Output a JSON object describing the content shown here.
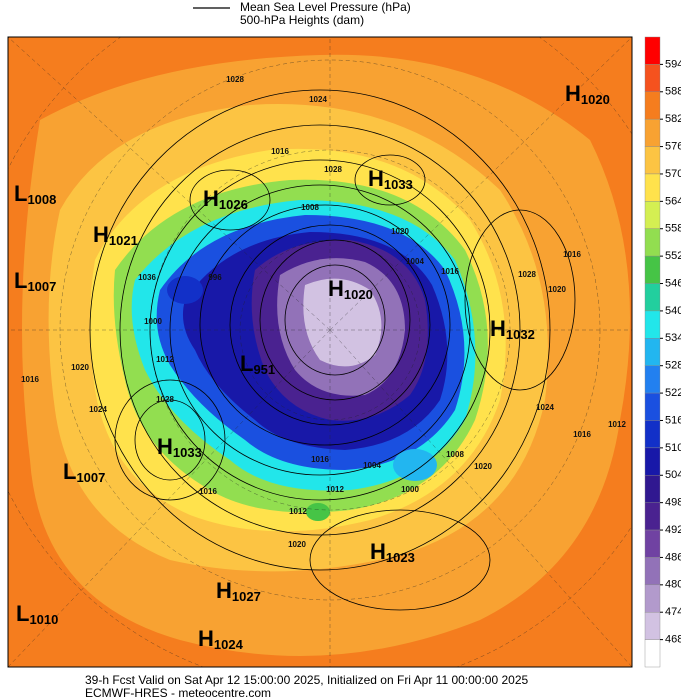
{
  "legend": {
    "items": [
      "Mean Sea Level Pressure (hPa)",
      "500-hPa Heights (dam)"
    ]
  },
  "colorbar": {
    "ticks": [
      594,
      588,
      582,
      576,
      570,
      564,
      558,
      552,
      546,
      540,
      534,
      528,
      522,
      516,
      510,
      504,
      498,
      492,
      486,
      480,
      474,
      468
    ],
    "colors": [
      "#ff0000",
      "#f5521e",
      "#f57d1e",
      "#f8a232",
      "#fcc443",
      "#ffe24c",
      "#d4ef52",
      "#92de50",
      "#46c446",
      "#22cf9e",
      "#22e6ea",
      "#22b6f0",
      "#2280f0",
      "#1a50e0",
      "#1230c8",
      "#1818a8",
      "#301890",
      "#4a2290",
      "#7042a2",
      "#9272b8",
      "#b29acc",
      "#d2c2e2",
      "#ffffff"
    ]
  },
  "centers": [
    {
      "kind": "H",
      "value": 1020
    },
    {
      "kind": "L",
      "value": 1008
    },
    {
      "kind": "H",
      "value": 1026
    },
    {
      "kind": "H",
      "value": 1033
    },
    {
      "kind": "H",
      "value": 1021
    },
    {
      "kind": "L",
      "value": 1007
    },
    {
      "kind": "H",
      "value": 1020
    },
    {
      "kind": "H",
      "value": 1032
    },
    {
      "kind": "L",
      "value": 951
    },
    {
      "kind": "H",
      "value": 1033
    },
    {
      "kind": "L",
      "value": 1007
    },
    {
      "kind": "H",
      "value": 1023
    },
    {
      "kind": "H",
      "value": 1027
    },
    {
      "kind": "L",
      "value": 1010
    },
    {
      "kind": "H",
      "value": 1024
    }
  ],
  "contour_labels": [
    1028,
    1024,
    1016,
    1028,
    1020,
    1008,
    1004,
    1016,
    1016,
    1028,
    1020,
    1036,
    1000,
    996,
    1012,
    1020,
    1016,
    1024,
    1028,
    1016,
    1004,
    1012,
    1000,
    1020,
    1016,
    1012,
    1008,
    1020,
    1024,
    1016,
    1012
  ],
  "footer": [
    "39-h Fcst Valid on Sat Apr 12 15:00:00 2025, Initialized on Fri Apr 11 00:00:00 2025",
    "ECMWF-HRES - meteocentre.com"
  ]
}
